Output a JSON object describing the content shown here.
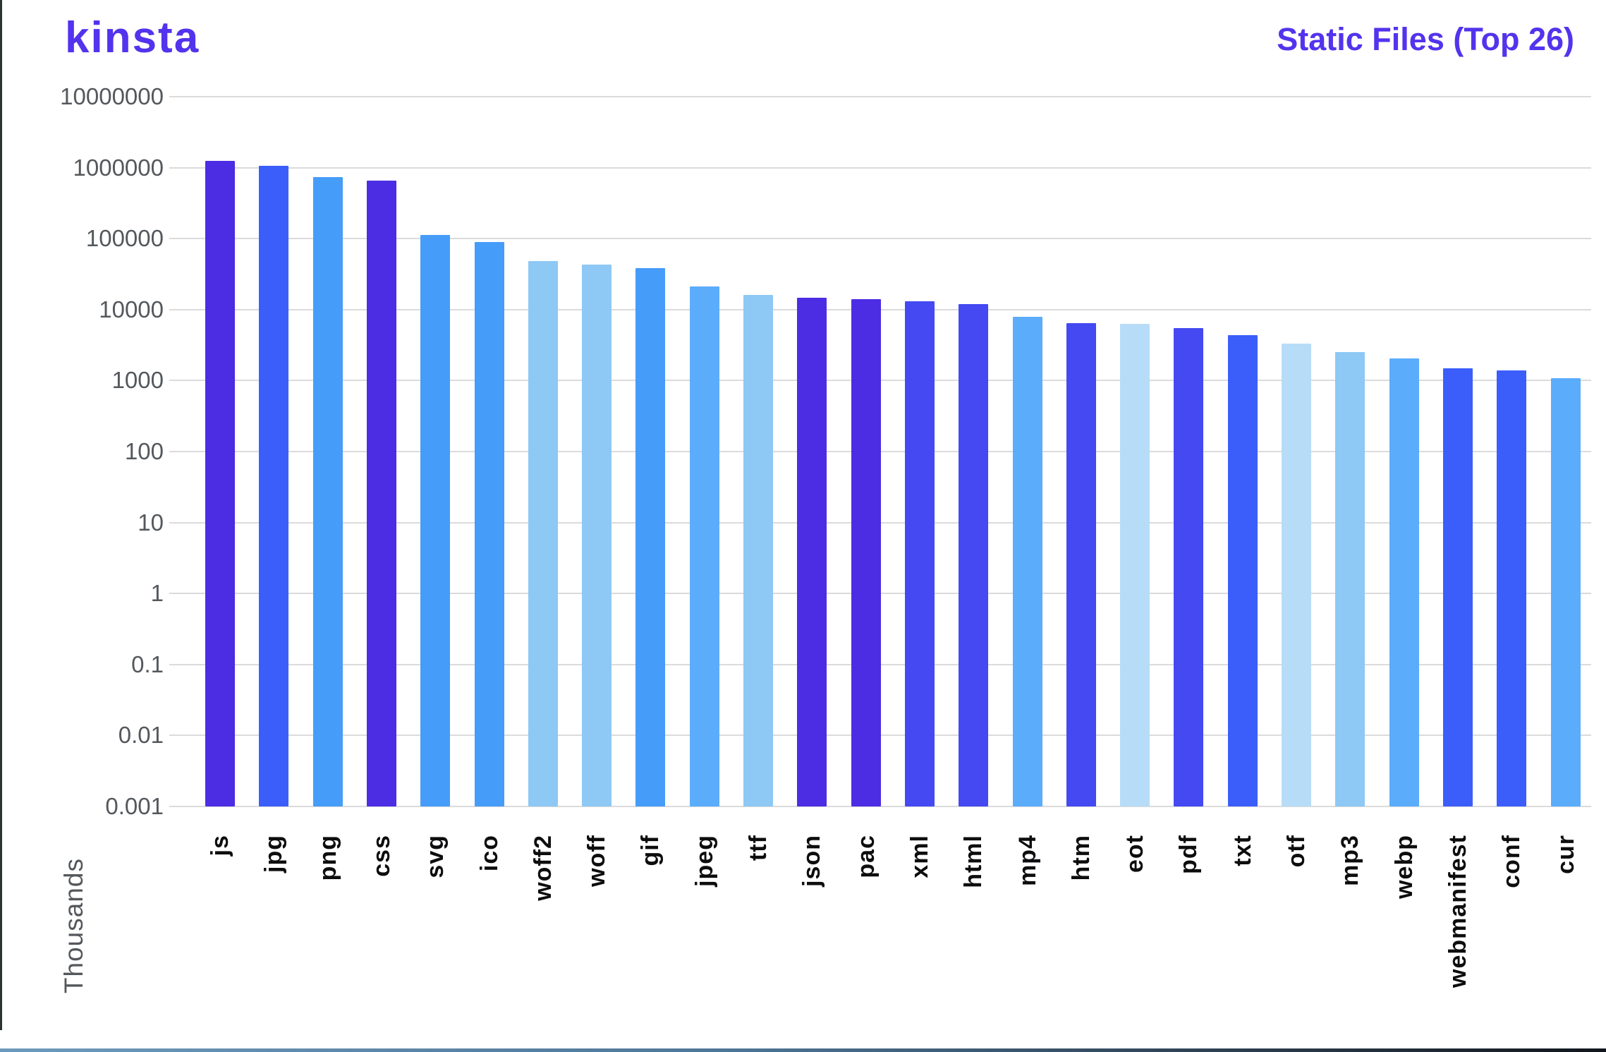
{
  "header": {
    "logo_text": "Kinsta",
    "title": "Static Files (Top 26)"
  },
  "chart_data": {
    "type": "bar",
    "title": "Static Files (Top 26)",
    "xlabel": "",
    "ylabel": "Thousands",
    "y_scale": "log",
    "ylim": [
      0.001,
      10000000
    ],
    "y_ticks": [
      "10000000",
      "1000000",
      "100000",
      "10000",
      "1000",
      "100",
      "10",
      "1",
      "0.1",
      "0.01",
      "0.001"
    ],
    "grid": true,
    "legend": "none",
    "categories": [
      "js",
      "jpg",
      "png",
      "css",
      "svg",
      "ico",
      "woff2",
      "woff",
      "gif",
      "jpeg",
      "ttf",
      "json",
      "pac",
      "xml",
      "html",
      "mp4",
      "htm",
      "eot",
      "pdf",
      "txt",
      "otf",
      "mp3",
      "webp",
      "webmanifest",
      "conf",
      "cur"
    ],
    "values": [
      1250000,
      1060000,
      730000,
      650000,
      113000,
      89000,
      48000,
      43000,
      38000,
      21000,
      16000,
      14800,
      14000,
      13000,
      12000,
      8000,
      6500,
      6300,
      5500,
      4400,
      3300,
      2550,
      2050,
      1500,
      1400,
      1080
    ],
    "bar_color_keys": [
      "violet",
      "royal",
      "azure",
      "violet",
      "azure",
      "azure",
      "light",
      "light",
      "azure",
      "sky",
      "light",
      "violet",
      "violet",
      "indigo",
      "indigo",
      "sky",
      "indigo",
      "pale",
      "indigo",
      "royal",
      "pale",
      "light",
      "sky",
      "royal",
      "royal",
      "sky"
    ],
    "palette": {
      "violet": "#4C2DE3",
      "royal": "#3B5EFB",
      "indigo": "#4449F1",
      "azure": "#469CF9",
      "sky": "#5BACFB",
      "light": "#8EC8F4",
      "pale": "#B7DCF7"
    },
    "accent_color": "#5333ED",
    "gridline_color": "#DBDBDB",
    "tick_label_color": "#54585C",
    "x_label_color": "#0D0D0F"
  }
}
